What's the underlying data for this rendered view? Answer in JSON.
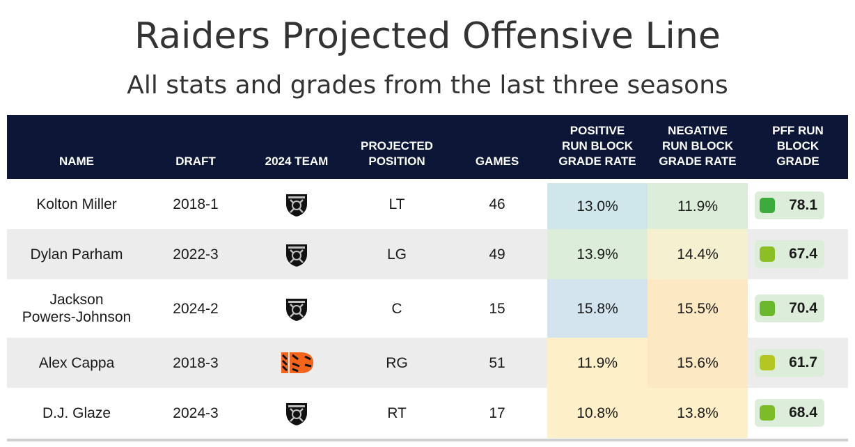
{
  "title": "Raiders Projected Offensive Line",
  "subtitle": "All stats and grades from the last three seasons",
  "headers": {
    "name": "NAME",
    "draft": "DRAFT",
    "team": "2024 TEAM",
    "position_1": "PROJECTED",
    "position_2": "POSITION",
    "games": "GAMES",
    "pos_1": "POSITIVE",
    "pos_2": "RUN BLOCK",
    "pos_3": "GRADE RATE",
    "neg_1": "NEGATIVE",
    "neg_2": "RUN BLOCK",
    "neg_3": "GRADE RATE",
    "pff_1": "PFF RUN",
    "pff_2": "BLOCK",
    "pff_3": "GRADE"
  },
  "rows": [
    {
      "name": "Kolton Miller",
      "draft": "2018-1",
      "team_icon": "raiders-logo-icon",
      "position": "LT",
      "games": "46",
      "positive": "13.0%",
      "negative": "11.9%",
      "grade": "78.1",
      "positive_bg": "#cfe6ea",
      "negative_bg": "#dcedd9",
      "grade_bg": "#dcedd9",
      "grade_dot": "#3caa3c"
    },
    {
      "name": "Dylan Parham",
      "draft": "2022-3",
      "team_icon": "raiders-logo-icon",
      "position": "LG",
      "games": "49",
      "positive": "13.9%",
      "negative": "14.4%",
      "grade": "67.4",
      "positive_bg": "#dcedd9",
      "negative_bg": "#f5f0cf",
      "grade_bg": "#dcedd9",
      "grade_dot": "#8cbf26"
    },
    {
      "name_1": "Jackson",
      "name_2": "Powers-Johnson",
      "draft": "2024-2",
      "team_icon": "raiders-logo-icon",
      "position": "C",
      "games": "15",
      "positive": "15.8%",
      "negative": "15.5%",
      "grade": "70.4",
      "positive_bg": "#d3e4ef",
      "negative_bg": "#fde8c4",
      "grade_bg": "#dcedd9",
      "grade_dot": "#6bb82e"
    },
    {
      "name": "Alex Cappa",
      "draft": "2018-3",
      "team_icon": "bengals-logo-icon",
      "position": "RG",
      "games": "51",
      "positive": "11.9%",
      "negative": "15.6%",
      "grade": "61.7",
      "positive_bg": "#fdf0c8",
      "negative_bg": "#fde8c4",
      "grade_bg": "#dcedd9",
      "grade_dot": "#b4c622"
    },
    {
      "name": "D.J. Glaze",
      "draft": "2024-3",
      "team_icon": "raiders-logo-icon",
      "position": "RT",
      "games": "17",
      "positive": "10.8%",
      "negative": "13.8%",
      "grade": "68.4",
      "positive_bg": "#fdf0c8",
      "negative_bg": "#fdf0c8",
      "grade_bg": "#dcedd9",
      "grade_dot": "#7dbb28"
    }
  ],
  "colors": {
    "header_bg": "#0c1738",
    "alt_row_bg": "#ececec"
  }
}
